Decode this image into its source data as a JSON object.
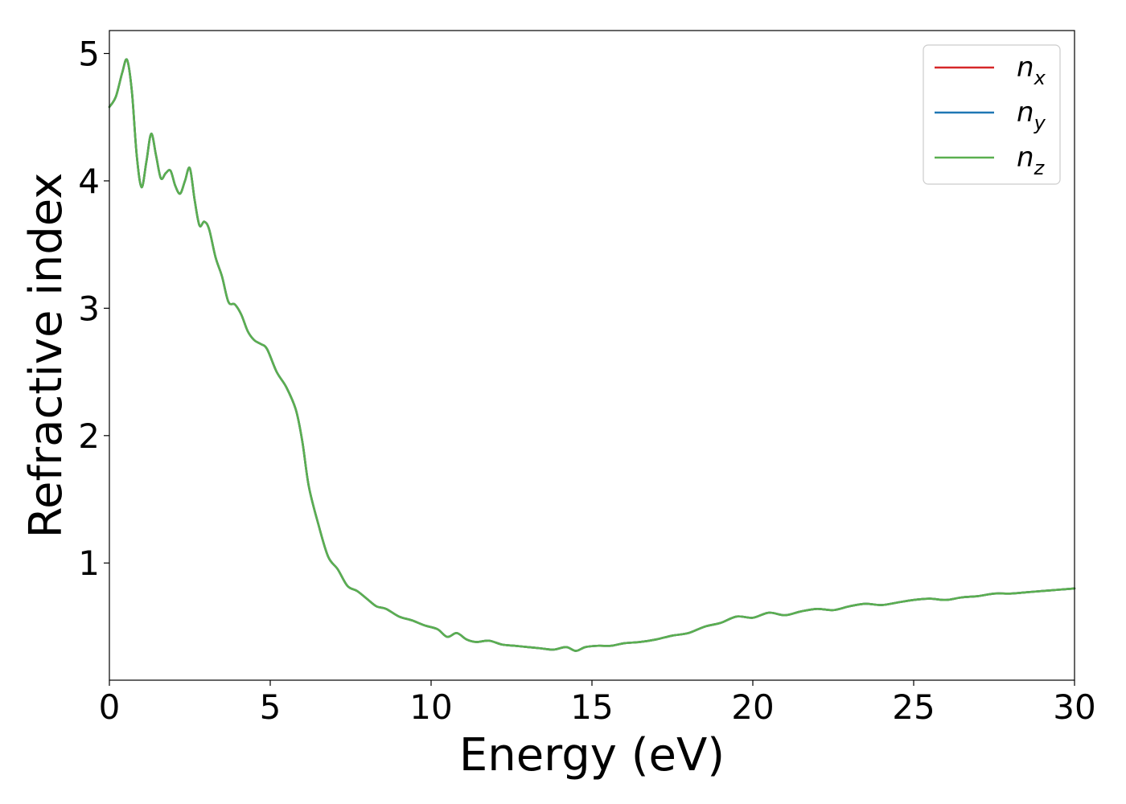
{
  "chart_data": {
    "type": "line",
    "title": "",
    "xlabel": "Energy (eV)",
    "ylabel": "Refractive index",
    "xlim": [
      0,
      30
    ],
    "ylim": [
      0.08,
      5.18
    ],
    "xticks": [
      0,
      5,
      10,
      15,
      20,
      25,
      30
    ],
    "yticks": [
      1,
      2,
      3,
      4,
      5
    ],
    "grid": false,
    "legend_position": "top-right",
    "legend_labels": [
      {
        "base": "n",
        "sub": "x"
      },
      {
        "base": "n",
        "sub": "y"
      },
      {
        "base": "n",
        "sub": "z"
      }
    ],
    "x": [
      0,
      0.2,
      0.4,
      0.55,
      0.7,
      0.85,
      1.0,
      1.15,
      1.3,
      1.45,
      1.6,
      1.75,
      1.9,
      2.05,
      2.2,
      2.35,
      2.5,
      2.65,
      2.8,
      2.95,
      3.1,
      3.3,
      3.5,
      3.7,
      3.9,
      4.1,
      4.3,
      4.5,
      4.7,
      4.9,
      5.2,
      5.5,
      5.8,
      6.0,
      6.2,
      6.5,
      6.8,
      7.1,
      7.4,
      7.7,
      8.0,
      8.3,
      8.6,
      9.0,
      9.4,
      9.8,
      10.2,
      10.5,
      10.8,
      11.1,
      11.4,
      11.8,
      12.2,
      12.6,
      13.0,
      13.4,
      13.8,
      14.2,
      14.5,
      14.8,
      15.2,
      15.6,
      16.0,
      16.5,
      17.0,
      17.5,
      18.0,
      18.5,
      19.0,
      19.5,
      20.0,
      20.5,
      21.0,
      21.5,
      22.0,
      22.5,
      23.0,
      23.5,
      24.0,
      24.5,
      25.0,
      25.5,
      26.0,
      26.5,
      27.0,
      27.5,
      28.0,
      28.5,
      29.0,
      29.5,
      30.0
    ],
    "series": [
      {
        "name": "nx",
        "color": "#d62728",
        "values": [
          4.58,
          4.66,
          4.85,
          4.95,
          4.7,
          4.2,
          3.95,
          4.15,
          4.37,
          4.2,
          4.02,
          4.06,
          4.08,
          3.96,
          3.9,
          4.0,
          4.1,
          3.85,
          3.65,
          3.68,
          3.62,
          3.4,
          3.25,
          3.05,
          3.03,
          2.95,
          2.82,
          2.75,
          2.72,
          2.68,
          2.5,
          2.38,
          2.2,
          1.95,
          1.6,
          1.3,
          1.05,
          0.95,
          0.82,
          0.78,
          0.72,
          0.66,
          0.64,
          0.58,
          0.55,
          0.51,
          0.48,
          0.42,
          0.45,
          0.4,
          0.38,
          0.39,
          0.36,
          0.35,
          0.34,
          0.33,
          0.32,
          0.34,
          0.31,
          0.34,
          0.35,
          0.35,
          0.37,
          0.38,
          0.4,
          0.43,
          0.45,
          0.5,
          0.53,
          0.58,
          0.57,
          0.61,
          0.59,
          0.62,
          0.64,
          0.63,
          0.66,
          0.68,
          0.67,
          0.69,
          0.71,
          0.72,
          0.71,
          0.73,
          0.74,
          0.76,
          0.76,
          0.77,
          0.78,
          0.79,
          0.8
        ]
      },
      {
        "name": "ny",
        "color": "#1f77b4",
        "values": [
          4.58,
          4.66,
          4.85,
          4.95,
          4.7,
          4.2,
          3.95,
          4.15,
          4.37,
          4.2,
          4.02,
          4.06,
          4.08,
          3.96,
          3.9,
          4.0,
          4.1,
          3.85,
          3.65,
          3.68,
          3.62,
          3.4,
          3.25,
          3.05,
          3.03,
          2.95,
          2.82,
          2.75,
          2.72,
          2.68,
          2.5,
          2.38,
          2.2,
          1.95,
          1.6,
          1.3,
          1.05,
          0.95,
          0.82,
          0.78,
          0.72,
          0.66,
          0.64,
          0.58,
          0.55,
          0.51,
          0.48,
          0.42,
          0.45,
          0.4,
          0.38,
          0.39,
          0.36,
          0.35,
          0.34,
          0.33,
          0.32,
          0.34,
          0.31,
          0.34,
          0.35,
          0.35,
          0.37,
          0.38,
          0.4,
          0.43,
          0.45,
          0.5,
          0.53,
          0.58,
          0.57,
          0.61,
          0.59,
          0.62,
          0.64,
          0.63,
          0.66,
          0.68,
          0.67,
          0.69,
          0.71,
          0.72,
          0.71,
          0.73,
          0.74,
          0.76,
          0.76,
          0.77,
          0.78,
          0.79,
          0.8
        ]
      },
      {
        "name": "nz",
        "color": "#5aaf50",
        "values": [
          4.58,
          4.66,
          4.85,
          4.95,
          4.7,
          4.2,
          3.95,
          4.15,
          4.37,
          4.2,
          4.02,
          4.06,
          4.08,
          3.96,
          3.9,
          4.0,
          4.1,
          3.85,
          3.65,
          3.68,
          3.62,
          3.4,
          3.25,
          3.05,
          3.03,
          2.95,
          2.82,
          2.75,
          2.72,
          2.68,
          2.5,
          2.38,
          2.2,
          1.95,
          1.6,
          1.3,
          1.05,
          0.95,
          0.82,
          0.78,
          0.72,
          0.66,
          0.64,
          0.58,
          0.55,
          0.51,
          0.48,
          0.42,
          0.45,
          0.4,
          0.38,
          0.39,
          0.36,
          0.35,
          0.34,
          0.33,
          0.32,
          0.34,
          0.31,
          0.34,
          0.35,
          0.35,
          0.37,
          0.38,
          0.4,
          0.43,
          0.45,
          0.5,
          0.53,
          0.58,
          0.57,
          0.61,
          0.59,
          0.62,
          0.64,
          0.63,
          0.66,
          0.68,
          0.67,
          0.69,
          0.71,
          0.72,
          0.71,
          0.73,
          0.74,
          0.76,
          0.76,
          0.77,
          0.78,
          0.79,
          0.8
        ]
      }
    ]
  }
}
